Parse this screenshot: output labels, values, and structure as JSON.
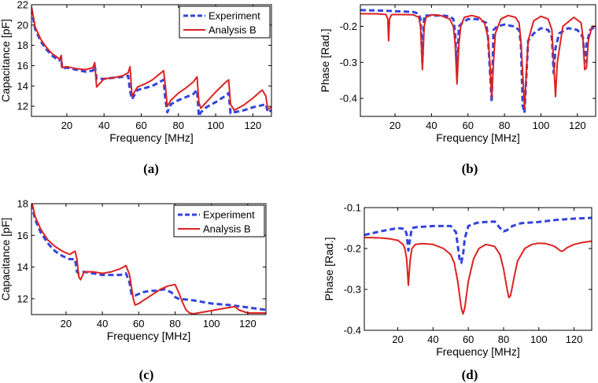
{
  "chart_data": [
    {
      "type": "line",
      "panel_label": "(a)",
      "xlabel": "Frequency [MHz]",
      "ylabel": "Capacitance [pF]",
      "xlim": [
        1,
        130
      ],
      "ylim": [
        11,
        22
      ],
      "xticks": [
        20,
        40,
        60,
        80,
        100,
        120
      ],
      "yticks": [
        12,
        14,
        16,
        18,
        20,
        22
      ],
      "grid": false,
      "legend": "top-right",
      "series": [
        {
          "name": "Experiment",
          "color": "#3344dd",
          "style": "dashed",
          "x": [
            1,
            3,
            6,
            9,
            12,
            15,
            16,
            17,
            17.5,
            20,
            25,
            30,
            34,
            35,
            36,
            40,
            45,
            50,
            53,
            54,
            55,
            58,
            62,
            66,
            70,
            72,
            73,
            74,
            76,
            80,
            84,
            88,
            90,
            91,
            92,
            95,
            100,
            105,
            107,
            108,
            110,
            115,
            120,
            125,
            127,
            128,
            130
          ],
          "y": [
            21.6,
            19.6,
            18.4,
            17.6,
            17.0,
            16.6,
            16.5,
            16.8,
            15.7,
            15.8,
            15.6,
            15.4,
            15.5,
            16.0,
            14.7,
            14.7,
            14.8,
            14.9,
            15.0,
            13.5,
            12.7,
            13.6,
            13.8,
            14.0,
            14.4,
            14.6,
            12.6,
            11.4,
            12.2,
            12.6,
            12.9,
            13.2,
            13.6,
            11.0,
            11.4,
            11.9,
            12.4,
            13.0,
            13.3,
            11.3,
            11.4,
            11.6,
            11.9,
            12.1,
            12.2,
            11.4,
            11.6
          ]
        },
        {
          "name": "Analysis B",
          "color": "#dd2222",
          "style": "solid",
          "x": [
            1,
            3,
            6,
            9,
            12,
            15,
            16,
            17,
            17.5,
            20,
            25,
            30,
            34,
            35,
            36,
            40,
            45,
            50,
            53,
            54,
            55,
            58,
            62,
            66,
            70,
            72,
            73,
            74,
            76,
            80,
            84,
            88,
            90,
            91,
            92,
            95,
            100,
            105,
            107,
            108,
            110,
            115,
            120,
            125,
            127,
            128,
            130
          ],
          "y": [
            21.8,
            19.8,
            18.6,
            17.8,
            17.2,
            16.8,
            16.6,
            17.0,
            15.8,
            15.9,
            15.7,
            15.6,
            15.8,
            16.3,
            13.9,
            14.7,
            14.8,
            15.0,
            15.3,
            15.9,
            13.0,
            13.9,
            14.2,
            14.6,
            15.2,
            15.5,
            14.0,
            12.0,
            12.6,
            13.3,
            13.8,
            14.4,
            14.9,
            12.4,
            11.8,
            12.4,
            13.4,
            14.3,
            14.6,
            12.2,
            11.6,
            12.1,
            12.8,
            13.6,
            13.0,
            11.7,
            11.9
          ]
        }
      ]
    },
    {
      "type": "line",
      "panel_label": "(b)",
      "xlabel": "Frequency [MHz]",
      "ylabel": "Phase [Rad.]",
      "xlim": [
        1,
        130
      ],
      "ylim": [
        -0.45,
        -0.14
      ],
      "xticks": [
        20,
        40,
        60,
        80,
        100,
        120
      ],
      "yticks": [
        -0.4,
        -0.3,
        -0.2
      ],
      "grid": false,
      "legend": "none",
      "series": [
        {
          "name": "Experiment",
          "color": "#3344dd",
          "style": "dashed",
          "x": [
            1,
            10,
            20,
            30,
            33,
            34,
            35,
            36,
            38,
            45,
            50,
            52,
            53,
            54,
            55,
            57,
            60,
            65,
            70,
            71,
            72,
            73,
            74,
            76,
            80,
            85,
            88,
            89,
            90,
            91,
            93,
            96,
            100,
            104,
            106,
            107,
            108,
            110,
            115,
            120,
            123,
            124,
            125,
            127,
            130
          ],
          "y": [
            -0.155,
            -0.156,
            -0.158,
            -0.16,
            -0.165,
            -0.18,
            -0.3,
            -0.17,
            -0.17,
            -0.17,
            -0.172,
            -0.18,
            -0.22,
            -0.33,
            -0.2,
            -0.19,
            -0.18,
            -0.18,
            -0.19,
            -0.23,
            -0.32,
            -0.41,
            -0.21,
            -0.2,
            -0.195,
            -0.2,
            -0.21,
            -0.25,
            -0.42,
            -0.44,
            -0.24,
            -0.22,
            -0.205,
            -0.21,
            -0.23,
            -0.33,
            -0.26,
            -0.22,
            -0.205,
            -0.21,
            -0.23,
            -0.3,
            -0.25,
            -0.21,
            -0.2
          ]
        },
        {
          "name": "Analysis B",
          "color": "#dd2222",
          "style": "solid",
          "x": [
            1,
            10,
            15,
            16,
            16.5,
            17,
            18,
            20,
            30,
            33,
            34,
            35,
            36,
            37,
            40,
            45,
            50,
            52,
            53,
            54,
            55,
            56,
            58,
            62,
            66,
            69,
            71,
            72,
            73,
            74,
            75,
            78,
            82,
            86,
            88,
            89,
            90,
            91,
            92,
            93,
            96,
            100,
            104,
            106,
            107,
            108,
            109,
            112,
            118,
            122,
            123,
            124,
            125,
            126,
            128,
            130
          ],
          "y": [
            -0.165,
            -0.165,
            -0.167,
            -0.18,
            -0.24,
            -0.18,
            -0.168,
            -0.167,
            -0.168,
            -0.175,
            -0.2,
            -0.32,
            -0.2,
            -0.175,
            -0.168,
            -0.17,
            -0.18,
            -0.2,
            -0.25,
            -0.36,
            -0.25,
            -0.2,
            -0.175,
            -0.17,
            -0.175,
            -0.19,
            -0.23,
            -0.3,
            -0.4,
            -0.3,
            -0.22,
            -0.18,
            -0.17,
            -0.175,
            -0.19,
            -0.24,
            -0.33,
            -0.43,
            -0.33,
            -0.24,
            -0.185,
            -0.172,
            -0.18,
            -0.21,
            -0.3,
            -0.395,
            -0.3,
            -0.2,
            -0.175,
            -0.19,
            -0.23,
            -0.32,
            -0.315,
            -0.24,
            -0.2,
            -0.2
          ]
        }
      ]
    },
    {
      "type": "line",
      "panel_label": "(c)",
      "xlabel": "Frequency [MHz]",
      "ylabel": "Capacitance [pF]",
      "xlim": [
        1,
        130
      ],
      "ylim": [
        11,
        18
      ],
      "xticks": [
        20,
        40,
        60,
        80,
        100,
        120
      ],
      "yticks": [
        12,
        14,
        16,
        18
      ],
      "grid": false,
      "legend": "top-right",
      "series": [
        {
          "name": "Experiment",
          "color": "#3344dd",
          "style": "dashed",
          "x": [
            1,
            3,
            6,
            10,
            14,
            18,
            22,
            25,
            26,
            27,
            30,
            35,
            40,
            45,
            50,
            53,
            55,
            56,
            58,
            62,
            66,
            70,
            74,
            78,
            80,
            82,
            90,
            100,
            110,
            120,
            130
          ],
          "y": [
            18.0,
            17.0,
            16.2,
            15.5,
            15.0,
            14.7,
            14.5,
            14.5,
            13.7,
            13.6,
            13.7,
            13.6,
            13.5,
            13.5,
            13.5,
            13.6,
            13.0,
            12.3,
            12.2,
            12.4,
            12.5,
            12.5,
            12.6,
            12.4,
            12.1,
            12.0,
            11.9,
            11.7,
            11.6,
            11.45,
            11.3
          ]
        },
        {
          "name": "Analysis B",
          "color": "#dd2222",
          "style": "solid",
          "x": [
            1,
            3,
            6,
            10,
            14,
            18,
            22,
            25,
            26,
            27,
            28,
            30,
            35,
            40,
            45,
            50,
            53,
            55,
            57,
            58,
            60,
            64,
            68,
            72,
            76,
            80,
            82,
            84,
            86,
            88,
            90,
            95,
            100,
            105,
            110,
            113,
            115,
            120,
            125,
            130
          ],
          "y": [
            18.2,
            17.2,
            16.4,
            15.7,
            15.3,
            15.0,
            14.8,
            15.0,
            14.5,
            13.4,
            13.2,
            13.7,
            13.7,
            13.6,
            13.7,
            13.9,
            14.1,
            13.5,
            12.0,
            11.6,
            11.7,
            12.0,
            12.3,
            12.6,
            12.8,
            12.9,
            12.4,
            11.8,
            11.3,
            11.1,
            11.05,
            11.15,
            11.25,
            11.35,
            11.45,
            11.5,
            11.3,
            11.1,
            11.1,
            11.1
          ]
        }
      ]
    },
    {
      "type": "line",
      "panel_label": "(d)",
      "xlabel": "Frequency [MHz]",
      "ylabel": "Phase [Rad.]",
      "xlim": [
        1,
        130
      ],
      "ylim": [
        -0.4,
        -0.1
      ],
      "xticks": [
        20,
        40,
        60,
        80,
        100,
        120
      ],
      "yticks": [
        -0.4,
        -0.3,
        -0.2,
        -0.1
      ],
      "grid": false,
      "legend": "none",
      "series": [
        {
          "name": "Experiment",
          "color": "#3344dd",
          "style": "dashed",
          "x": [
            1,
            10,
            20,
            24,
            25,
            26,
            27,
            28,
            30,
            40,
            50,
            53,
            55,
            56,
            57,
            58,
            60,
            65,
            70,
            75,
            78,
            80,
            82,
            85,
            90,
            100,
            110,
            120,
            130
          ],
          "y": [
            -0.167,
            -0.158,
            -0.15,
            -0.152,
            -0.165,
            -0.205,
            -0.175,
            -0.15,
            -0.148,
            -0.145,
            -0.145,
            -0.16,
            -0.225,
            -0.235,
            -0.215,
            -0.175,
            -0.145,
            -0.137,
            -0.135,
            -0.134,
            -0.15,
            -0.158,
            -0.155,
            -0.145,
            -0.138,
            -0.135,
            -0.13,
            -0.127,
            -0.125
          ]
        },
        {
          "name": "Analysis B",
          "color": "#dd2222",
          "style": "solid",
          "x": [
            1,
            10,
            15,
            20,
            23,
            24,
            25,
            26,
            27,
            28,
            30,
            34,
            40,
            46,
            50,
            52,
            54,
            56,
            57,
            58,
            60,
            63,
            66,
            70,
            75,
            78,
            80,
            82,
            83,
            84,
            86,
            88,
            92,
            96,
            100,
            104,
            108,
            110,
            112,
            113,
            114,
            116,
            120,
            125,
            130
          ],
          "y": [
            -0.173,
            -0.174,
            -0.176,
            -0.18,
            -0.19,
            -0.2,
            -0.225,
            -0.29,
            -0.23,
            -0.2,
            -0.19,
            -0.188,
            -0.19,
            -0.2,
            -0.215,
            -0.235,
            -0.28,
            -0.345,
            -0.36,
            -0.345,
            -0.28,
            -0.225,
            -0.2,
            -0.19,
            -0.195,
            -0.215,
            -0.25,
            -0.3,
            -0.32,
            -0.315,
            -0.27,
            -0.23,
            -0.2,
            -0.19,
            -0.187,
            -0.188,
            -0.193,
            -0.198,
            -0.205,
            -0.207,
            -0.205,
            -0.198,
            -0.19,
            -0.185,
            -0.182
          ]
        }
      ]
    }
  ]
}
